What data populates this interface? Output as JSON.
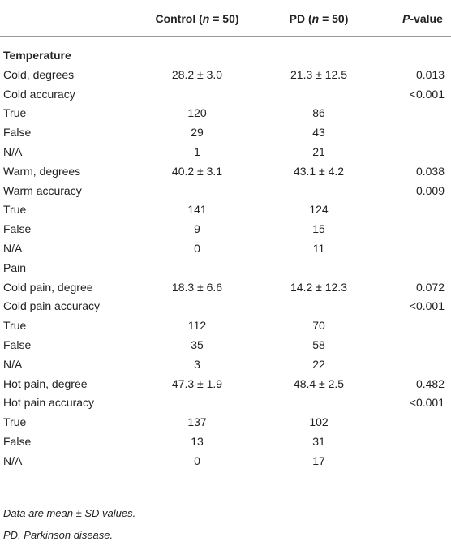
{
  "table": {
    "header": [
      {
        "parts": [
          "Control (",
          "n",
          " = 50)"
        ]
      },
      {
        "parts": [
          "PD (",
          "n",
          " = 50)"
        ]
      },
      {
        "parts": [
          "P",
          "-value"
        ]
      }
    ],
    "rows": [
      {
        "label": "Temperature",
        "bold": true
      },
      {
        "label": "Cold, degrees",
        "control": "28.2 ± 3.0",
        "pd": "21.3 ± 12.5",
        "p": "0.013"
      },
      {
        "label": "Cold accuracy",
        "p": "<0.001"
      },
      {
        "label": "True",
        "control": "120",
        "pd": "86"
      },
      {
        "label": "False",
        "control": "29",
        "pd": "43"
      },
      {
        "label": "N/A",
        "control": "1",
        "pd": "21"
      },
      {
        "label": "Warm, degrees",
        "control": "40.2 ± 3.1",
        "pd": "43.1 ± 4.2",
        "p": "0.038"
      },
      {
        "label": "Warm accuracy",
        "p": "0.009"
      },
      {
        "label": "True",
        "control": "141",
        "pd": "124"
      },
      {
        "label": "False",
        "control": "9",
        "pd": "15"
      },
      {
        "label": "N/A",
        "control": "0",
        "pd": "11"
      },
      {
        "label": "Pain"
      },
      {
        "label": "Cold pain, degree",
        "control": "18.3 ± 6.6",
        "pd": "14.2 ± 12.3",
        "p": "0.072"
      },
      {
        "label": "Cold pain accuracy",
        "p": "<0.001"
      },
      {
        "label": "True",
        "control": "112",
        "pd": "70"
      },
      {
        "label": "False",
        "control": "35",
        "pd": "58"
      },
      {
        "label": "N/A",
        "control": "3",
        "pd": "22"
      },
      {
        "label": "Hot pain, degree",
        "control": "47.3 ± 1.9",
        "pd": "48.4 ± 2.5",
        "p": "0.482"
      },
      {
        "label": "Hot pain accuracy",
        "p": "<0.001"
      },
      {
        "label": "True",
        "control": "137",
        "pd": "102"
      },
      {
        "label": "False",
        "control": "13",
        "pd": "31"
      },
      {
        "label": "N/A",
        "control": "0",
        "pd": "17"
      }
    ]
  },
  "notes": [
    "Data are mean ± SD values.",
    "PD, Parkinson disease."
  ]
}
